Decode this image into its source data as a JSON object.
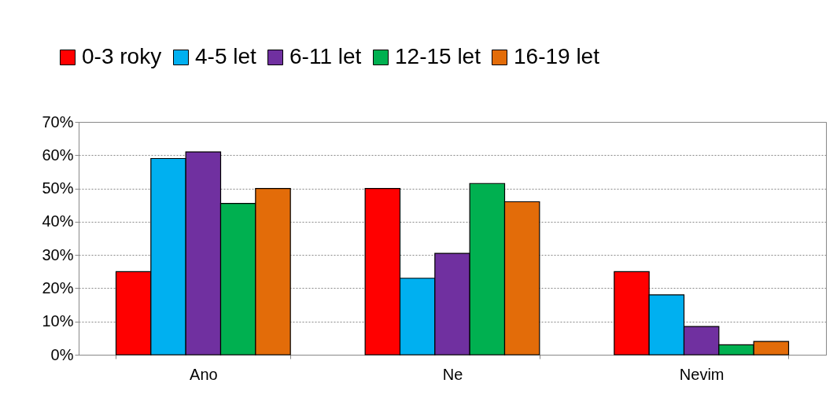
{
  "chart_data": {
    "type": "bar",
    "categories": [
      "Ano",
      "Ne",
      "Nevim"
    ],
    "series": [
      {
        "name": "0-3 roky",
        "color": "#ff0000",
        "values": [
          25,
          50,
          25
        ]
      },
      {
        "name": "4-5 let",
        "color": "#00b0f0",
        "values": [
          59,
          23,
          18
        ]
      },
      {
        "name": "6-11 let",
        "color": "#7030a0",
        "values": [
          61,
          30.5,
          8.5
        ]
      },
      {
        "name": "12-15 let",
        "color": "#00b050",
        "values": [
          45.5,
          51.5,
          3
        ]
      },
      {
        "name": "16-19 let",
        "color": "#e36c09",
        "values": [
          50,
          46,
          4
        ]
      }
    ],
    "ylim": [
      0,
      70
    ],
    "yticks": [
      {
        "value": 0,
        "label": "0%"
      },
      {
        "value": 10,
        "label": "10%"
      },
      {
        "value": 20,
        "label": "20%"
      },
      {
        "value": 30,
        "label": "30%"
      },
      {
        "value": 40,
        "label": "40%"
      },
      {
        "value": 50,
        "label": "50%"
      },
      {
        "value": 60,
        "label": "60%"
      },
      {
        "value": 70,
        "label": "70%"
      }
    ],
    "grid": "y",
    "legend": "top"
  }
}
